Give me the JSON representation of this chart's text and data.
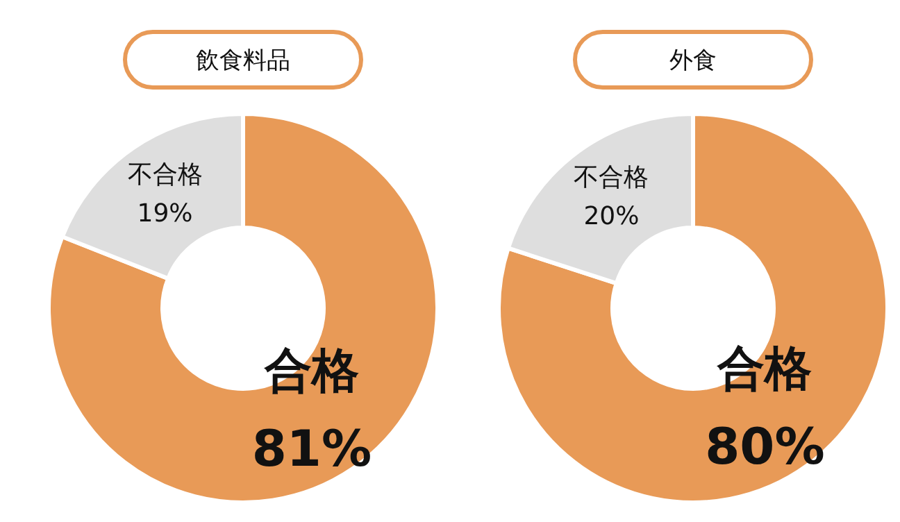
{
  "chart_data": [
    {
      "type": "donut",
      "title": "飲食料品",
      "categories": [
        "合格",
        "不合格"
      ],
      "values": [
        81,
        19
      ],
      "value_labels": [
        "81%",
        "19%"
      ],
      "colors": [
        "#e89a57",
        "#dedede"
      ]
    },
    {
      "type": "donut",
      "title": "外食",
      "categories": [
        "合格",
        "不合格"
      ],
      "values": [
        80,
        20
      ],
      "value_labels": [
        "80%",
        "20%"
      ],
      "colors": [
        "#e89a57",
        "#dedede"
      ]
    }
  ]
}
